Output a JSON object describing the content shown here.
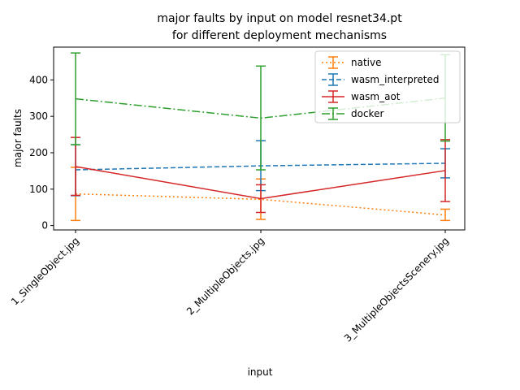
{
  "chart_data": {
    "type": "line",
    "title_line1": "major faults by input on model resnet34.pt",
    "title_line2": "for different deployment mechanisms",
    "xlabel": "input",
    "ylabel": "major faults",
    "categories": [
      "1_SingleObject.jpg",
      "2_MultipleObjects.jpg",
      "3_MultipleObjectsScenery.jpg"
    ],
    "ylim": [
      -12,
      490
    ],
    "yticks": [
      0,
      100,
      200,
      300,
      400
    ],
    "grid": false,
    "legend_position": "top-right",
    "series": [
      {
        "name": "native",
        "color": "#ff7f0e",
        "dash": "dotted",
        "values": [
          87,
          72,
          29
        ],
        "err_low": [
          14,
          17,
          14
        ],
        "err_high": [
          160,
          128,
          45
        ]
      },
      {
        "name": "wasm_interpreted",
        "color": "#1f77b4",
        "dash": "dashed",
        "values": [
          153,
          164,
          171
        ],
        "err_low": [
          82,
          96,
          131
        ],
        "err_high": [
          222,
          233,
          211
        ]
      },
      {
        "name": "wasm_aot",
        "color": "#d62728",
        "dash": "solid",
        "values": [
          162,
          74,
          151
        ],
        "err_low": [
          83,
          36,
          66
        ],
        "err_high": [
          242,
          112,
          236
        ]
      },
      {
        "name": "docker",
        "color": "#2ca02c",
        "dash": "dashdot",
        "values": [
          348,
          295,
          350
        ],
        "err_low": [
          222,
          153,
          232
        ],
        "err_high": [
          474,
          438,
          469
        ]
      }
    ]
  }
}
